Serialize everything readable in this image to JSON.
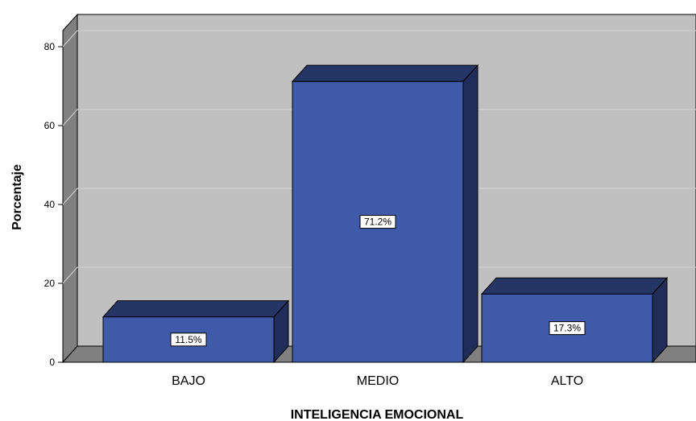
{
  "chart_data": {
    "type": "bar",
    "categories": [
      "BAJO",
      "MEDIO",
      "ALTO"
    ],
    "values": [
      11.5,
      71.2,
      17.3
    ],
    "data_labels": [
      "11.5%",
      "71.2%",
      "17.3%"
    ],
    "xlabel": "INTELIGENCIA EMOCIONAL",
    "ylabel": "Porcentaje",
    "ylim": [
      0,
      80
    ],
    "yticks": [
      0,
      20,
      40,
      60,
      80
    ],
    "grid": true,
    "style": "3d",
    "colors": {
      "bar_front": "#3f5aa9",
      "bar_top": "#253566",
      "bar_side": "#1f2d58",
      "plot_back": "#c0c0c0",
      "plot_floor": "#808080",
      "plot_wall": "#808080",
      "gridline": "#d4d4d4",
      "outline": "#000000"
    }
  }
}
